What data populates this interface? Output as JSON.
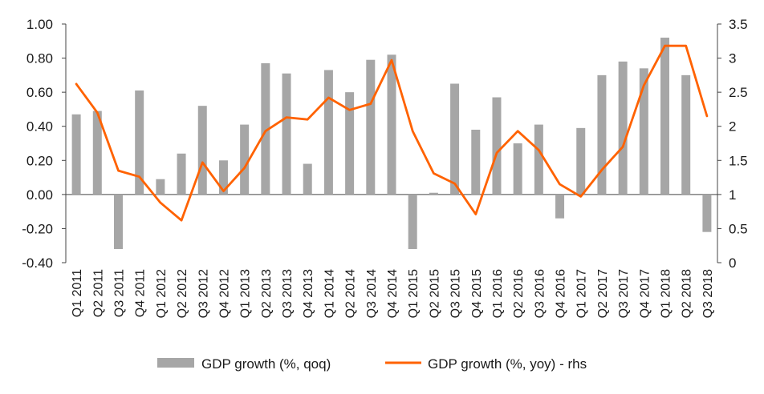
{
  "chart_data": {
    "type": "bar",
    "categories": [
      "Q1 2011",
      "Q2 2011",
      "Q3 2011",
      "Q4 2011",
      "Q1 2012",
      "Q2 2012",
      "Q3 2012",
      "Q4 2012",
      "Q1 2013",
      "Q2 2013",
      "Q3 2013",
      "Q4 2013",
      "Q1 2014",
      "Q2 2014",
      "Q3 2014",
      "Q4 2014",
      "Q1 2015",
      "Q2 2015",
      "Q3 2015",
      "Q4 2015",
      "Q1 2016",
      "Q2 2016",
      "Q3 2016",
      "Q4 2016",
      "Q1 2017",
      "Q2 2017",
      "Q3 2017",
      "Q4 2017",
      "Q1 2018",
      "Q2 2018",
      "Q3 2018"
    ],
    "series": [
      {
        "name": "GDP growth (%, qoq)",
        "type": "bar",
        "axis": "left",
        "color": "#a6a6a6",
        "values": [
          0.47,
          0.49,
          -0.32,
          0.61,
          0.09,
          0.24,
          0.52,
          0.2,
          0.41,
          0.77,
          0.71,
          0.18,
          0.73,
          0.6,
          0.79,
          0.82,
          -0.32,
          0.01,
          0.65,
          0.38,
          0.57,
          0.3,
          0.41,
          -0.14,
          0.39,
          0.7,
          0.78,
          0.74,
          0.92,
          0.7,
          -0.22
        ]
      },
      {
        "name": "GDP growth (%, yoy) - rhs",
        "type": "line",
        "axis": "right",
        "color": "#ff6200",
        "values": [
          2.62,
          2.2,
          1.35,
          1.26,
          0.88,
          0.62,
          1.47,
          1.05,
          1.39,
          1.93,
          2.13,
          2.1,
          2.42,
          2.24,
          2.33,
          2.97,
          1.93,
          1.31,
          1.16,
          0.71,
          1.61,
          1.93,
          1.65,
          1.15,
          0.97,
          1.36,
          1.7,
          2.6,
          3.18,
          3.18,
          2.15
        ]
      }
    ],
    "y_left": {
      "range": [
        -0.4,
        1.0
      ],
      "ticks": [
        "1.00",
        "0.80",
        "0.60",
        "0.40",
        "0.20",
        "0.00",
        "-0.20",
        "-0.40"
      ],
      "tick_values": [
        1.0,
        0.8,
        0.6,
        0.4,
        0.2,
        0.0,
        -0.2,
        -0.4
      ]
    },
    "y_right": {
      "range": [
        0,
        3.5
      ],
      "ticks": [
        "3.5",
        "3",
        "2.5",
        "2",
        "1.5",
        "1",
        "0.5",
        "0"
      ],
      "tick_values": [
        3.5,
        3,
        2.5,
        2,
        1.5,
        1,
        0.5,
        0
      ]
    },
    "grid": false,
    "legend_position": "bottom"
  }
}
